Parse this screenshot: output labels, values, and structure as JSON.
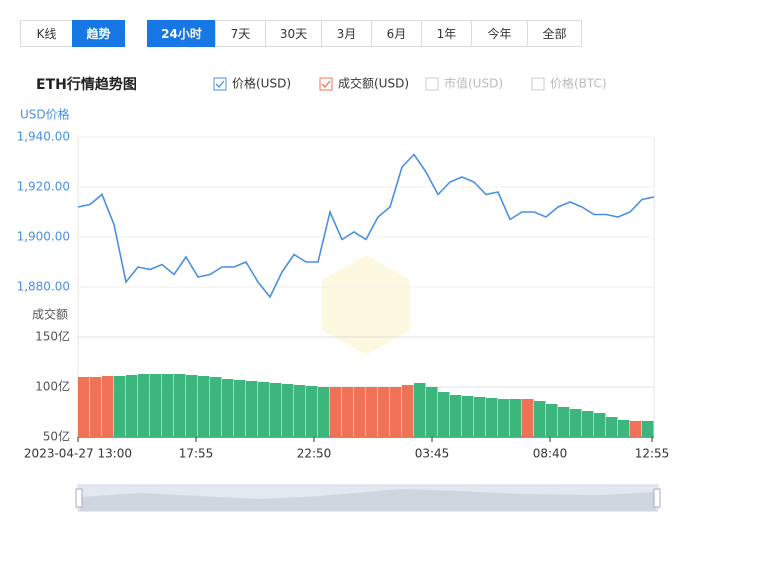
{
  "tabs": [
    "K线",
    "趋势"
  ],
  "ranges": [
    "24小时",
    "7天",
    "30天",
    "3月",
    "6月",
    "1年",
    "今年",
    "全部"
  ],
  "chart_data": {
    "type": "line",
    "title": "ETH行情趋势图",
    "inactive_legend": [
      "市值(USD)",
      "价格(BTC)"
    ],
    "ylabel": "USD价格",
    "y2label": "成交额",
    "xlim": [
      0,
      24
    ],
    "xticks": [
      {
        "value": 0,
        "label": "2023-04-27 13:00"
      },
      {
        "value": 4.9167,
        "label": "17:55"
      },
      {
        "value": 9.8333,
        "label": "22:50"
      },
      {
        "value": 14.75,
        "label": "03:45"
      },
      {
        "value": 19.6667,
        "label": "08:40"
      },
      {
        "value": 23.9167,
        "label": "12:55"
      }
    ],
    "ylim": [
      1870,
      1940
    ],
    "yticks": [
      {
        "value": 1880,
        "label": "1,880.00"
      },
      {
        "value": 1900,
        "label": "1,900.00"
      },
      {
        "value": 1920,
        "label": "1,920.00"
      },
      {
        "value": 1940,
        "label": "1,940.00"
      }
    ],
    "y2lim": [
      50,
      150
    ],
    "y2ticks": [
      {
        "value": 50,
        "label": "50亿"
      },
      {
        "value": 100,
        "label": "100亿"
      },
      {
        "value": 150,
        "label": "150亿"
      }
    ],
    "series": [
      {
        "name": "价格(USD)",
        "color": "#4a90e2",
        "x": [
          0,
          0.5,
          1,
          1.5,
          2,
          2.5,
          3,
          3.5,
          4,
          4.5,
          5,
          5.5,
          6,
          6.5,
          7,
          7.5,
          8,
          8.5,
          9,
          9.5,
          10,
          10.5,
          11,
          11.5,
          12,
          12.5,
          13,
          13.5,
          14,
          14.5,
          15,
          15.5,
          16,
          16.5,
          17,
          17.5,
          18,
          18.5,
          19,
          19.5,
          20,
          20.5,
          21,
          21.5,
          22,
          22.5,
          23,
          23.5,
          24
        ],
        "values": [
          1912,
          1913,
          1917,
          1905,
          1882,
          1888,
          1887,
          1889,
          1885,
          1892,
          1884,
          1885,
          1888,
          1888,
          1890,
          1882,
          1876,
          1886,
          1893,
          1890,
          1890,
          1910,
          1899,
          1902,
          1899,
          1908,
          1912,
          1928,
          1933,
          1926,
          1917,
          1922,
          1924,
          1922,
          1917,
          1918,
          1907,
          1910,
          1910,
          1908,
          1912,
          1914,
          1912,
          1909,
          1909,
          1908,
          1910,
          1915,
          1916
        ]
      },
      {
        "name": "成交额(USD)",
        "type": "bar",
        "axis": "y2",
        "color": "#f07256",
        "x": [
          0.25,
          0.75,
          1.25,
          1.75,
          2.25,
          2.75,
          3.25,
          3.75,
          4.25,
          4.75,
          5.25,
          5.75,
          6.25,
          6.75,
          7.25,
          7.75,
          8.25,
          8.75,
          9.25,
          9.75,
          10.25,
          10.75,
          11.25,
          11.75,
          12.25,
          12.75,
          13.25,
          13.75,
          14.25,
          14.75,
          15.25,
          15.75,
          16.25,
          16.75,
          17.25,
          17.75,
          18.25,
          18.75,
          19.25,
          19.75,
          20.25,
          20.75,
          21.25,
          21.75,
          22.25,
          22.75,
          23.25,
          23.75
        ],
        "values": [
          110,
          110,
          111,
          111,
          112,
          113,
          113,
          113,
          113,
          112,
          111,
          110,
          108,
          107,
          106,
          105,
          104,
          103,
          102,
          101,
          100,
          100,
          100,
          100,
          100,
          100,
          100,
          102,
          104,
          100,
          95,
          92,
          91,
          90,
          89,
          88,
          88,
          88,
          86,
          83,
          80,
          78,
          76,
          74,
          70,
          67,
          66,
          66
        ],
        "colors": [
          "#f07256",
          "#f07256",
          "#f07256",
          "#3cb67c",
          "#3cb67c",
          "#3cb67c",
          "#3cb67c",
          "#3cb67c",
          "#3cb67c",
          "#3cb67c",
          "#3cb67c",
          "#3cb67c",
          "#3cb67c",
          "#3cb67c",
          "#3cb67c",
          "#3cb67c",
          "#3cb67c",
          "#3cb67c",
          "#3cb67c",
          "#3cb67c",
          "#3cb67c",
          "#f07256",
          "#f07256",
          "#f07256",
          "#f07256",
          "#f07256",
          "#f07256",
          "#f07256",
          "#3cb67c",
          "#3cb67c",
          "#3cb67c",
          "#3cb67c",
          "#3cb67c",
          "#3cb67c",
          "#3cb67c",
          "#3cb67c",
          "#3cb67c",
          "#f07256",
          "#3cb67c",
          "#3cb67c",
          "#3cb67c",
          "#3cb67c",
          "#3cb67c",
          "#3cb67c",
          "#3cb67c",
          "#3cb67c",
          "#f07256",
          "#3cb67c"
        ]
      }
    ]
  }
}
